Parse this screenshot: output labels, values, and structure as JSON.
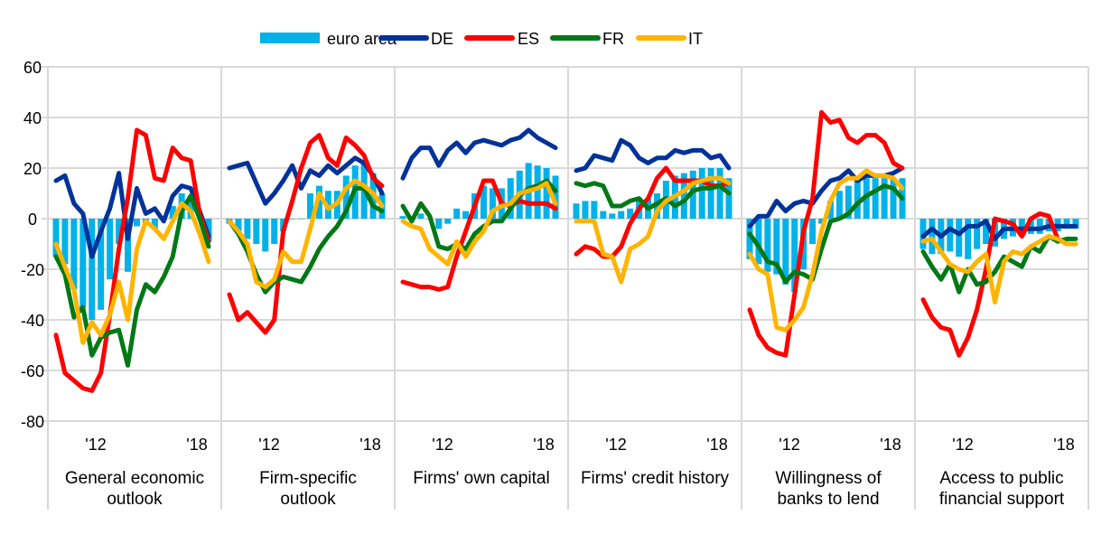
{
  "chart_data": {
    "type": "bar+line",
    "title": "",
    "xlabel": "",
    "ylabel": "",
    "ylim": [
      -80,
      60
    ],
    "yticks": [
      60,
      40,
      20,
      0,
      -20,
      -40,
      -60,
      -80
    ],
    "ytick_labels": [
      "60",
      "40",
      "20",
      "0",
      "-20",
      "-40",
      "-60",
      "-80"
    ],
    "grid": true,
    "legend_position": "top-center",
    "legend": [
      {
        "name": "euro area",
        "kind": "bar",
        "color": "#00B1EA"
      },
      {
        "name": "DE",
        "kind": "line",
        "color": "#003299"
      },
      {
        "name": "ES",
        "kind": "line",
        "color": "#FF0000"
      },
      {
        "name": "FR",
        "kind": "line",
        "color": "#007816"
      },
      {
        "name": "IT",
        "kind": "line",
        "color": "#FFB400"
      }
    ],
    "x_tick_labels": [
      "'12",
      "'18"
    ],
    "panels": [
      {
        "label_lines": [
          "General economic",
          "outlook"
        ],
        "series": {
          "euro area": [
            -15,
            -18,
            -28,
            -35,
            -40,
            -36,
            -24,
            -10,
            -21,
            -3,
            -2,
            -4,
            0,
            5,
            10,
            7,
            0,
            -9
          ],
          "DE": [
            15,
            17,
            6,
            2,
            -15,
            -5,
            4,
            18,
            -8,
            12,
            2,
            4,
            -1,
            9,
            13,
            12,
            3,
            -7
          ],
          "ES": [
            -46,
            -61,
            -64,
            -67,
            -68,
            -61,
            -38,
            -12,
            8,
            35,
            33,
            16,
            15,
            28,
            24,
            23,
            2,
            -9
          ],
          "FR": [
            -15,
            -22,
            -39,
            -35,
            -54,
            -47,
            -45,
            -44,
            -58,
            -36,
            -26,
            -29,
            -23,
            -15,
            3,
            9,
            0,
            -11
          ],
          "IT": [
            -10,
            -19,
            -28,
            -49,
            -41,
            -46,
            -38,
            -25,
            -40,
            -12,
            -1,
            -4,
            -8,
            -1,
            6,
            3,
            -6,
            -17
          ]
        }
      },
      {
        "label_lines": [
          "Firm-specific",
          "outlook"
        ],
        "series": {
          "euro area": [
            -2,
            -5,
            -8,
            -10,
            -13,
            -10,
            -5,
            0,
            0,
            10,
            13,
            11,
            11,
            17,
            21,
            22,
            18,
            10
          ],
          "DE": [
            20,
            21,
            22,
            14,
            6,
            10,
            15,
            21,
            12,
            19,
            17,
            21,
            18,
            21,
            24,
            22,
            17,
            10
          ],
          "ES": [
            -30,
            -40,
            -37,
            -41,
            -45,
            -40,
            -5,
            7,
            20,
            30,
            33,
            24,
            21,
            32,
            29,
            25,
            16,
            13
          ],
          "FR": [
            -1,
            -6,
            -13,
            -22,
            -29,
            -25,
            -23,
            -24,
            -25,
            -19,
            -12,
            -7,
            -3,
            3,
            12,
            12,
            5,
            3
          ],
          "IT": [
            -1,
            -5,
            -10,
            -25,
            -27,
            -24,
            -13,
            -17,
            -17,
            -4,
            10,
            4,
            6,
            12,
            15,
            13,
            10,
            5
          ]
        }
      },
      {
        "label_lines": [
          "Firms' own capital"
        ],
        "series": {
          "euro area": [
            1,
            1,
            2,
            0,
            -4,
            -2,
            4,
            3,
            10,
            13,
            12,
            12,
            16,
            19,
            22,
            21,
            20,
            17
          ],
          "DE": [
            16,
            24,
            28,
            28,
            21,
            27,
            30,
            26,
            30,
            31,
            30,
            29,
            31,
            32,
            35,
            32,
            30,
            28
          ],
          "ES": [
            -25,
            -26,
            -27,
            -27,
            -28,
            -27,
            -15,
            -5,
            5,
            15,
            15,
            6,
            5,
            7,
            6,
            6,
            6,
            4
          ],
          "FR": [
            5,
            -1,
            6,
            1,
            -11,
            -12,
            -10,
            -12,
            -6,
            -3,
            -1,
            -1,
            4,
            9,
            12,
            13,
            15,
            11
          ],
          "IT": [
            -1,
            -3,
            -4,
            -12,
            -15,
            -18,
            -9,
            -15,
            -9,
            -5,
            3,
            5,
            6,
            10,
            11,
            12,
            14,
            6
          ]
        }
      },
      {
        "label_lines": [
          "Firms' credit history"
        ],
        "series": {
          "euro area": [
            6,
            7,
            7,
            3,
            2,
            3,
            4,
            8,
            8,
            10,
            15,
            17,
            18,
            19,
            20,
            20,
            20,
            16
          ],
          "DE": [
            19,
            20,
            25,
            24,
            23,
            31,
            29,
            24,
            22,
            24,
            24,
            27,
            26,
            27,
            27,
            24,
            25,
            20
          ],
          "ES": [
            -14,
            -11,
            -12,
            -15,
            -15,
            -11,
            -2,
            4,
            8,
            16,
            20,
            15,
            15,
            15,
            15,
            13,
            13,
            14
          ],
          "FR": [
            14,
            13,
            14,
            13,
            5,
            5,
            7,
            8,
            4,
            6,
            8,
            5,
            7,
            11,
            12,
            12,
            13,
            10
          ],
          "IT": [
            -1,
            -1,
            -1,
            -14,
            -15,
            -25,
            -12,
            -10,
            -7,
            3,
            7,
            9,
            11,
            14,
            15,
            16,
            16,
            14
          ]
        }
      },
      {
        "label_lines": [
          "Willingness of",
          "banks to lend"
        ],
        "series": {
          "euro area": [
            -16,
            -18,
            -21,
            -22,
            -26,
            -29,
            -20,
            -10,
            -2,
            7,
            11,
            13,
            15,
            16,
            16,
            16,
            16,
            16
          ],
          "DE": [
            -3,
            1,
            1,
            7,
            3,
            6,
            7,
            6,
            11,
            15,
            16,
            19,
            15,
            17,
            17,
            17,
            18,
            20
          ],
          "ES": [
            -36,
            -46,
            -51,
            -53,
            -54,
            -30,
            -5,
            8,
            42,
            38,
            39,
            32,
            30,
            33,
            33,
            30,
            22,
            20
          ],
          "FR": [
            -6,
            -11,
            -17,
            -18,
            -25,
            -21,
            -22,
            -24,
            -12,
            -1,
            0,
            2,
            6,
            9,
            11,
            13,
            12,
            8
          ],
          "IT": [
            -14,
            -20,
            -22,
            -43,
            -44,
            -40,
            -35,
            -22,
            -5,
            7,
            14,
            16,
            16,
            19,
            17,
            17,
            16,
            12
          ]
        }
      },
      {
        "label_lines": [
          "Access to public",
          "financial support"
        ],
        "series": {
          "euro area": [
            -12,
            -14,
            -14,
            -13,
            -15,
            -16,
            -12,
            -10,
            -11,
            -8,
            -7,
            -6,
            -6,
            -6,
            -5,
            -5,
            -4,
            -4
          ],
          "DE": [
            -7,
            -4,
            -7,
            -4,
            -6,
            -3,
            -3,
            -1,
            -8,
            -4,
            -4,
            -4,
            -4,
            -4,
            -3,
            -3,
            -3,
            -3
          ],
          "ES": [
            -32,
            -39,
            -43,
            -44,
            -54,
            -47,
            -36,
            -20,
            0,
            -1,
            -2,
            -7,
            0,
            2,
            1,
            -8,
            -10,
            -10
          ],
          "FR": [
            -13,
            -19,
            -24,
            -18,
            -29,
            -20,
            -26,
            -25,
            -21,
            -15,
            -17,
            -19,
            -11,
            -13,
            -7,
            -9,
            -8,
            -8
          ],
          "IT": [
            -9,
            -8,
            -13,
            -18,
            -20,
            -21,
            -17,
            -14,
            -33,
            -17,
            -13,
            -14,
            -11,
            -9,
            -7,
            -8,
            -10,
            -10
          ]
        }
      }
    ]
  }
}
